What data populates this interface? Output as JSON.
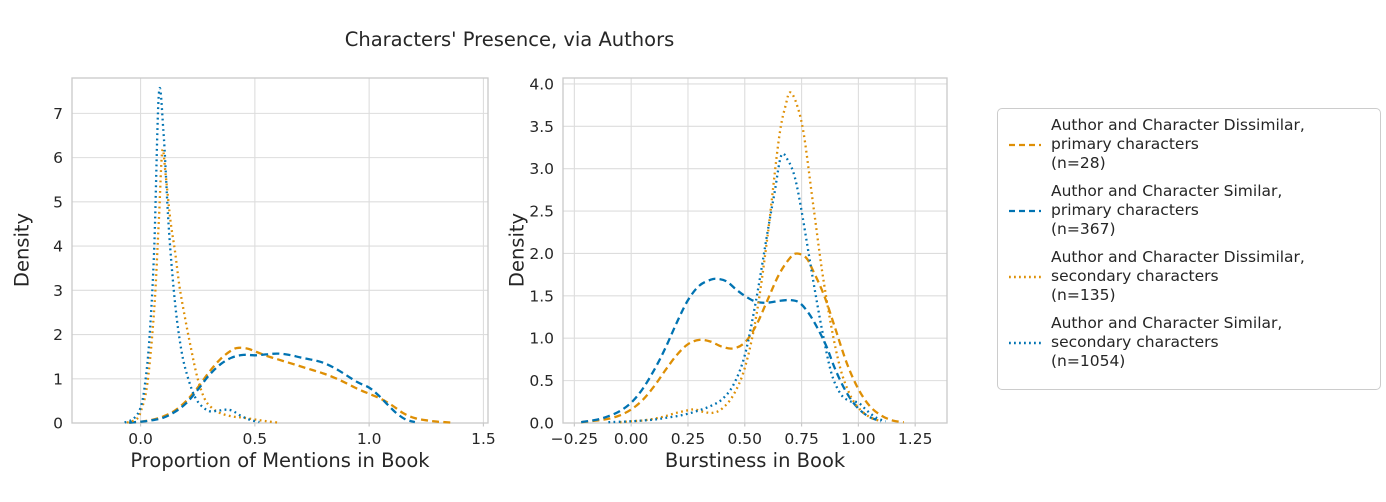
{
  "title": "Characters' Presence, via Authors",
  "palette": {
    "blue": "#0173b2",
    "orange": "#de8f05",
    "text": "#262626",
    "grid": "#dddddd",
    "spine": "#c9c9c9"
  },
  "legend": {
    "items": [
      {
        "label": "Author and Character Dissimilar,\nprimary characters\n(n=28)",
        "color": "orange",
        "style": "dashed"
      },
      {
        "label": "Author and Character Similar,\nprimary characters\n(n=367)",
        "color": "blue",
        "style": "dashed"
      },
      {
        "label": "Author and Character Dissimilar,\nsecondary characters\n(n=135)",
        "color": "orange",
        "style": "dotted"
      },
      {
        "label": "Author and Character Similar,\nsecondary characters\n(n=1054)",
        "color": "blue",
        "style": "dotted"
      }
    ]
  },
  "chart_data": [
    {
      "type": "line",
      "kind": "kde-density",
      "xlabel": "Proportion of Mentions in Book",
      "ylabel": "Density",
      "xlim": [
        -0.3,
        1.52
      ],
      "ylim": [
        0,
        7.8
      ],
      "grid": true,
      "xticks": [
        0,
        0.5,
        1.0,
        1.5
      ],
      "xtick_labels": [
        "0.0",
        "0.5",
        "1.0",
        "1.5"
      ],
      "yticks": [
        0,
        1,
        2,
        3,
        4,
        5,
        6,
        7
      ],
      "ytick_labels": [
        "0",
        "1",
        "2",
        "3",
        "4",
        "5",
        "6",
        "7"
      ],
      "series": [
        {
          "name": "Author and Character Dissimilar, primary characters (n=28)",
          "color": "orange",
          "style": "dashed",
          "points": [
            [
              -0.05,
              0.01
            ],
            [
              0,
              0.03
            ],
            [
              0.05,
              0.07
            ],
            [
              0.1,
              0.15
            ],
            [
              0.15,
              0.28
            ],
            [
              0.2,
              0.5
            ],
            [
              0.25,
              0.8
            ],
            [
              0.3,
              1.15
            ],
            [
              0.35,
              1.45
            ],
            [
              0.4,
              1.65
            ],
            [
              0.43,
              1.7
            ],
            [
              0.47,
              1.68
            ],
            [
              0.5,
              1.62
            ],
            [
              0.55,
              1.52
            ],
            [
              0.6,
              1.44
            ],
            [
              0.65,
              1.36
            ],
            [
              0.7,
              1.28
            ],
            [
              0.75,
              1.2
            ],
            [
              0.8,
              1.12
            ],
            [
              0.85,
              1.02
            ],
            [
              0.9,
              0.9
            ],
            [
              0.95,
              0.77
            ],
            [
              1.0,
              0.66
            ],
            [
              1.05,
              0.55
            ],
            [
              1.1,
              0.4
            ],
            [
              1.15,
              0.22
            ],
            [
              1.2,
              0.11
            ],
            [
              1.25,
              0.06
            ],
            [
              1.3,
              0.03
            ],
            [
              1.36,
              0.01
            ]
          ]
        },
        {
          "name": "Author and Character Similar, primary characters (n=367)",
          "color": "blue",
          "style": "dashed",
          "points": [
            [
              -0.05,
              0.01
            ],
            [
              0,
              0.03
            ],
            [
              0.05,
              0.06
            ],
            [
              0.1,
              0.12
            ],
            [
              0.15,
              0.25
            ],
            [
              0.2,
              0.45
            ],
            [
              0.25,
              0.75
            ],
            [
              0.3,
              1.08
            ],
            [
              0.35,
              1.33
            ],
            [
              0.4,
              1.48
            ],
            [
              0.45,
              1.54
            ],
            [
              0.5,
              1.53
            ],
            [
              0.55,
              1.55
            ],
            [
              0.6,
              1.57
            ],
            [
              0.65,
              1.54
            ],
            [
              0.7,
              1.48
            ],
            [
              0.75,
              1.43
            ],
            [
              0.8,
              1.36
            ],
            [
              0.85,
              1.24
            ],
            [
              0.9,
              1.08
            ],
            [
              0.95,
              0.92
            ],
            [
              1.0,
              0.8
            ],
            [
              1.04,
              0.63
            ],
            [
              1.08,
              0.42
            ],
            [
              1.12,
              0.22
            ],
            [
              1.16,
              0.08
            ],
            [
              1.2,
              0.02
            ]
          ]
        },
        {
          "name": "Author and Character Dissimilar, secondary characters (n=135)",
          "color": "orange",
          "style": "dotted",
          "points": [
            [
              -0.06,
              0.01
            ],
            [
              -0.02,
              0.08
            ],
            [
              0,
              0.25
            ],
            [
              0.03,
              0.9
            ],
            [
              0.06,
              2.6
            ],
            [
              0.08,
              4.6
            ],
            [
              0.095,
              6.15
            ],
            [
              0.11,
              5.6
            ],
            [
              0.13,
              4.6
            ],
            [
              0.15,
              3.9
            ],
            [
              0.17,
              3.1
            ],
            [
              0.19,
              2.5
            ],
            [
              0.22,
              1.7
            ],
            [
              0.25,
              1.0
            ],
            [
              0.28,
              0.55
            ],
            [
              0.31,
              0.35
            ],
            [
              0.35,
              0.22
            ],
            [
              0.4,
              0.15
            ],
            [
              0.45,
              0.12
            ],
            [
              0.5,
              0.08
            ],
            [
              0.55,
              0.04
            ],
            [
              0.6,
              0.01
            ]
          ]
        },
        {
          "name": "Author and Character Similar, secondary characters (n=1054)",
          "color": "blue",
          "style": "dotted",
          "points": [
            [
              -0.07,
              0.01
            ],
            [
              -0.03,
              0.1
            ],
            [
              0,
              0.35
            ],
            [
              0.02,
              0.9
            ],
            [
              0.04,
              2.0
            ],
            [
              0.06,
              4.0
            ],
            [
              0.08,
              7.45
            ],
            [
              0.1,
              6.6
            ],
            [
              0.12,
              4.7
            ],
            [
              0.14,
              3.3
            ],
            [
              0.16,
              2.3
            ],
            [
              0.18,
              1.6
            ],
            [
              0.2,
              1.15
            ],
            [
              0.23,
              0.68
            ],
            [
              0.26,
              0.42
            ],
            [
              0.3,
              0.27
            ],
            [
              0.34,
              0.28
            ],
            [
              0.37,
              0.3
            ],
            [
              0.4,
              0.28
            ],
            [
              0.44,
              0.16
            ],
            [
              0.48,
              0.07
            ],
            [
              0.52,
              0.02
            ]
          ]
        }
      ]
    },
    {
      "type": "line",
      "kind": "kde-density",
      "xlabel": "Burstiness in Book",
      "ylabel": "Density",
      "xlim": [
        -0.3,
        1.39
      ],
      "ylim": [
        0,
        4.07
      ],
      "grid": true,
      "xticks": [
        -0.25,
        0.0,
        0.25,
        0.5,
        0.75,
        1.0,
        1.25
      ],
      "xtick_labels": [
        "−0.25",
        "0.00",
        "0.25",
        "0.50",
        "0.75",
        "1.00",
        "1.25"
      ],
      "yticks": [
        0,
        0.5,
        1.0,
        1.5,
        2.0,
        2.5,
        3.0,
        3.5,
        4.0
      ],
      "ytick_labels": [
        "0.0",
        "0.5",
        "1.0",
        "1.5",
        "2.0",
        "2.5",
        "3.0",
        "3.5",
        "4.0"
      ],
      "series": [
        {
          "name": "Author and Character Dissimilar, primary characters (n=28)",
          "color": "orange",
          "style": "dashed",
          "points": [
            [
              -0.22,
              0.01
            ],
            [
              -0.15,
              0.03
            ],
            [
              -0.1,
              0.05
            ],
            [
              -0.05,
              0.09
            ],
            [
              0,
              0.16
            ],
            [
              0.05,
              0.27
            ],
            [
              0.1,
              0.43
            ],
            [
              0.15,
              0.62
            ],
            [
              0.2,
              0.8
            ],
            [
              0.25,
              0.93
            ],
            [
              0.3,
              0.98
            ],
            [
              0.35,
              0.96
            ],
            [
              0.4,
              0.9
            ],
            [
              0.45,
              0.88
            ],
            [
              0.5,
              0.95
            ],
            [
              0.55,
              1.15
            ],
            [
              0.6,
              1.45
            ],
            [
              0.65,
              1.75
            ],
            [
              0.7,
              1.95
            ],
            [
              0.73,
              2.0
            ],
            [
              0.77,
              1.95
            ],
            [
              0.8,
              1.8
            ],
            [
              0.85,
              1.5
            ],
            [
              0.9,
              1.1
            ],
            [
              0.95,
              0.7
            ],
            [
              1.0,
              0.4
            ],
            [
              1.05,
              0.2
            ],
            [
              1.1,
              0.09
            ],
            [
              1.15,
              0.03
            ],
            [
              1.2,
              0.01
            ]
          ]
        },
        {
          "name": "Author and Character Similar, primary characters (n=367)",
          "color": "blue",
          "style": "dashed",
          "points": [
            [
              -0.22,
              0.01
            ],
            [
              -0.15,
              0.04
            ],
            [
              -0.1,
              0.08
            ],
            [
              -0.05,
              0.14
            ],
            [
              0,
              0.24
            ],
            [
              0.05,
              0.4
            ],
            [
              0.1,
              0.62
            ],
            [
              0.15,
              0.88
            ],
            [
              0.2,
              1.18
            ],
            [
              0.25,
              1.45
            ],
            [
              0.3,
              1.62
            ],
            [
              0.35,
              1.69
            ],
            [
              0.38,
              1.7
            ],
            [
              0.42,
              1.67
            ],
            [
              0.46,
              1.58
            ],
            [
              0.5,
              1.5
            ],
            [
              0.55,
              1.43
            ],
            [
              0.6,
              1.42
            ],
            [
              0.65,
              1.44
            ],
            [
              0.7,
              1.45
            ],
            [
              0.74,
              1.42
            ],
            [
              0.78,
              1.3
            ],
            [
              0.82,
              1.12
            ],
            [
              0.86,
              0.9
            ],
            [
              0.9,
              0.62
            ],
            [
              0.95,
              0.35
            ],
            [
              1.0,
              0.17
            ],
            [
              1.05,
              0.07
            ],
            [
              1.1,
              0.02
            ]
          ]
        },
        {
          "name": "Author and Character Dissimilar, secondary characters (n=135)",
          "color": "orange",
          "style": "dotted",
          "points": [
            [
              -0.05,
              0.01
            ],
            [
              0,
              0.02
            ],
            [
              0.05,
              0.03
            ],
            [
              0.1,
              0.05
            ],
            [
              0.15,
              0.08
            ],
            [
              0.2,
              0.12
            ],
            [
              0.25,
              0.15
            ],
            [
              0.28,
              0.16
            ],
            [
              0.32,
              0.13
            ],
            [
              0.36,
              0.12
            ],
            [
              0.4,
              0.17
            ],
            [
              0.45,
              0.33
            ],
            [
              0.5,
              0.65
            ],
            [
              0.55,
              1.25
            ],
            [
              0.6,
              2.2
            ],
            [
              0.65,
              3.35
            ],
            [
              0.68,
              3.75
            ],
            [
              0.7,
              3.9
            ],
            [
              0.73,
              3.75
            ],
            [
              0.76,
              3.4
            ],
            [
              0.8,
              2.6
            ],
            [
              0.84,
              1.8
            ],
            [
              0.88,
              1.15
            ],
            [
              0.92,
              0.65
            ],
            [
              0.96,
              0.35
            ],
            [
              1.0,
              0.18
            ],
            [
              1.05,
              0.07
            ],
            [
              1.1,
              0.02
            ]
          ]
        },
        {
          "name": "Author and Character Similar, secondary characters (n=1054)",
          "color": "blue",
          "style": "dotted",
          "points": [
            [
              -0.1,
              0.01
            ],
            [
              0,
              0.02
            ],
            [
              0.1,
              0.04
            ],
            [
              0.15,
              0.06
            ],
            [
              0.2,
              0.08
            ],
            [
              0.25,
              0.11
            ],
            [
              0.3,
              0.15
            ],
            [
              0.35,
              0.2
            ],
            [
              0.4,
              0.28
            ],
            [
              0.45,
              0.45
            ],
            [
              0.5,
              0.8
            ],
            [
              0.55,
              1.45
            ],
            [
              0.6,
              2.25
            ],
            [
              0.63,
              2.7
            ],
            [
              0.66,
              3.15
            ],
            [
              0.69,
              3.1
            ],
            [
              0.72,
              2.9
            ],
            [
              0.75,
              2.5
            ],
            [
              0.8,
              1.7
            ],
            [
              0.84,
              1.1
            ],
            [
              0.88,
              0.6
            ],
            [
              0.92,
              0.35
            ],
            [
              0.96,
              0.26
            ],
            [
              1.0,
              0.24
            ],
            [
              1.04,
              0.14
            ],
            [
              1.08,
              0.06
            ],
            [
              1.12,
              0.02
            ]
          ]
        }
      ]
    }
  ]
}
